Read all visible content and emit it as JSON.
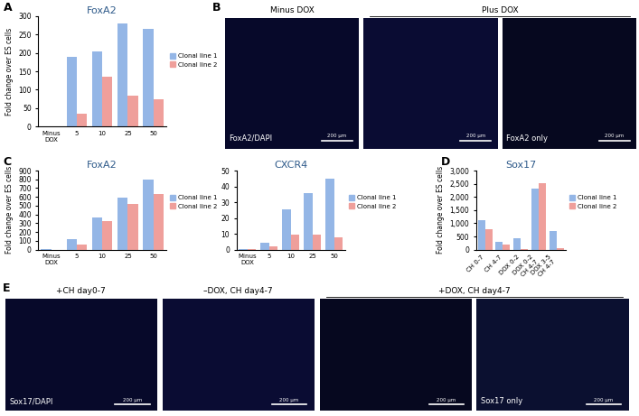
{
  "chart_data": [
    {
      "panel_label": "A",
      "type": "bar",
      "title": "FoxA2",
      "y_label": "Fold change over ES cells",
      "categories": [
        "Minus\nDOX",
        "5",
        "10",
        "25",
        "50"
      ],
      "series": [
        {
          "name": "Clonal line 1",
          "color": "#94b6e6",
          "values": [
            1,
            190,
            205,
            280,
            265
          ]
        },
        {
          "name": "Clonal line 2",
          "color": "#ef9f9b",
          "values": [
            1,
            35,
            135,
            85,
            75
          ]
        }
      ],
      "ylim": [
        0,
        300
      ],
      "yticks": [
        0,
        50,
        100,
        150,
        200,
        250,
        300
      ],
      "legend": "right",
      "grid": false
    },
    {
      "panel_label": "C",
      "type": "bar",
      "title": "FoxA2",
      "y_label": "Fold change over ES cells",
      "categories": [
        "Minus\nDOX",
        "5",
        "10",
        "25",
        "50"
      ],
      "series": [
        {
          "name": "Clonal line 1",
          "color": "#94b6e6",
          "values": [
            2,
            115,
            370,
            595,
            800
          ]
        },
        {
          "name": "Clonal line 2",
          "color": "#ef9f9b",
          "values": [
            1,
            55,
            320,
            520,
            635
          ]
        }
      ],
      "ylim": [
        0,
        900
      ],
      "yticks": [
        0,
        100,
        200,
        300,
        400,
        500,
        600,
        700,
        800,
        900
      ],
      "legend": "right",
      "grid": false
    },
    {
      "type": "bar",
      "title": "CXCR4",
      "categories": [
        "Minus\nDOX",
        "5",
        "10",
        "25",
        "50"
      ],
      "series": [
        {
          "name": "Clonal line 1",
          "color": "#94b6e6",
          "values": [
            0.5,
            4.5,
            25.5,
            36,
            45
          ]
        },
        {
          "name": "Clonal line 2",
          "color": "#ef9f9b",
          "values": [
            0.3,
            2,
            9.5,
            9.5,
            8
          ]
        }
      ],
      "ylim": [
        0,
        50
      ],
      "yticks": [
        0,
        10,
        20,
        30,
        40,
        50
      ],
      "legend": "right",
      "grid": false
    },
    {
      "panel_label": "D",
      "type": "bar",
      "title": "Sox17",
      "y_label": "Fold change over ES cells",
      "categories": [
        "CH 0-7",
        "CH 4-7",
        "DOX 0-2",
        "DOX 0-2\nCH 4-7",
        "DOX 3-5\nCH 4-7"
      ],
      "series": [
        {
          "name": "Clonal line 1",
          "color": "#94b6e6",
          "values": [
            1130,
            300,
            420,
            2300,
            700
          ]
        },
        {
          "name": "Clonal line 2",
          "color": "#ef9f9b",
          "values": [
            760,
            200,
            30,
            2520,
            50
          ]
        }
      ],
      "ylim": [
        0,
        3000
      ],
      "yticks": [
        0,
        500,
        {
          "value": 1000,
          "label": "1,000"
        },
        {
          "value": 1500,
          "label": "1,500"
        },
        {
          "value": 2000,
          "label": "2,000"
        },
        {
          "value": 2500,
          "label": "2,500"
        },
        {
          "value": 3000,
          "label": "3,000"
        }
      ],
      "legend": "right",
      "grid": false
    }
  ],
  "images": [
    {
      "panel_label": "B",
      "headers": [
        {
          "text": "Minus DOX",
          "tiles": [
            0
          ]
        },
        {
          "text": "Plus DOX",
          "tiles": [
            1,
            2
          ]
        }
      ],
      "tiles": [
        {
          "label": "FoxA2/DAPI",
          "scale_bar": "200 µm"
        },
        {
          "label": null,
          "scale_bar": "200 µm"
        },
        {
          "label": "FoxA2 only",
          "scale_bar": "200 µm"
        }
      ]
    },
    {
      "panel_label": "E",
      "headers": [
        {
          "text": "+CH day0-7",
          "tiles": [
            0
          ]
        },
        {
          "text": "–DOX, CH day4-7",
          "tiles": [
            1
          ]
        },
        {
          "text": "+DOX, CH day4-7",
          "tiles": [
            2,
            3
          ]
        }
      ],
      "tiles": [
        {
          "label": "Sox17/DAPI",
          "scale_bar": "200 µm"
        },
        {
          "label": null,
          "scale_bar": "200 µm"
        },
        {
          "label": null,
          "scale_bar": "200 µm"
        },
        {
          "label": "Sox17 only",
          "scale_bar": "200 µm"
        }
      ]
    }
  ]
}
